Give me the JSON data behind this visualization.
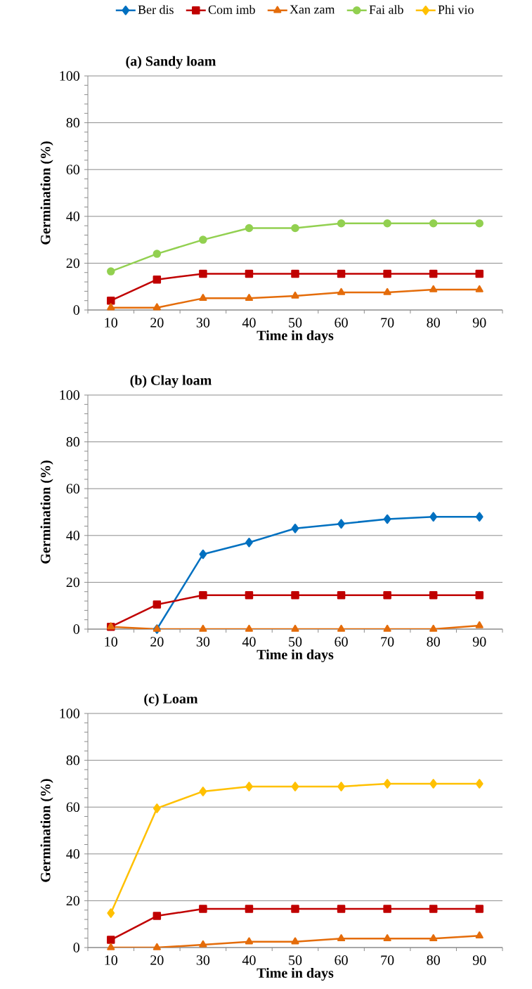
{
  "chart_data": [
    {
      "type": "line",
      "title": "(a)  Sandy loam",
      "xlabel": "Time in days",
      "ylabel": "Germination (%)",
      "categories": [
        "10",
        "20",
        "30",
        "40",
        "50",
        "60",
        "70",
        "80",
        "90"
      ],
      "ylim": [
        0,
        100
      ],
      "yticks": [
        0,
        20,
        40,
        60,
        80,
        100
      ],
      "grid": "y",
      "legend": "top",
      "series": [
        {
          "name": "Ber dis",
          "color": "#0070c0",
          "marker": "diamond",
          "values": [
            null,
            null,
            null,
            null,
            null,
            null,
            null,
            null,
            null
          ]
        },
        {
          "name": "Com imb",
          "color": "#c00000",
          "marker": "square",
          "values": [
            4,
            13,
            15.5,
            15.5,
            15.5,
            15.5,
            15.5,
            15.5,
            15.5
          ]
        },
        {
          "name": "Xan zam",
          "color": "#e46c0a",
          "marker": "triangle",
          "values": [
            1,
            1,
            5,
            5,
            6,
            7.5,
            7.5,
            8.7,
            8.7
          ]
        },
        {
          "name": "Fai alb",
          "color": "#92d050",
          "marker": "circle",
          "values": [
            16.5,
            24,
            30,
            35,
            35,
            37,
            37,
            37,
            37
          ]
        },
        {
          "name": "Phi vio",
          "color": "#ffc000",
          "marker": "diamond",
          "values": [
            null,
            null,
            null,
            null,
            null,
            null,
            null,
            null,
            null
          ]
        }
      ]
    },
    {
      "type": "line",
      "title": "(b) Clay loam",
      "xlabel": "Time in days",
      "ylabel": "Germination (%)",
      "categories": [
        "10",
        "20",
        "30",
        "40",
        "50",
        "60",
        "70",
        "80",
        "90"
      ],
      "ylim": [
        0,
        100
      ],
      "yticks": [
        0,
        20,
        40,
        60,
        80,
        100
      ],
      "grid": "y",
      "series": [
        {
          "color": "#0070c0",
          "marker": "diamond",
          "values": [
            null,
            0,
            32,
            37,
            43,
            45,
            47,
            48,
            48
          ]
        },
        {
          "color": "#c00000",
          "marker": "square",
          "values": [
            1,
            10.5,
            14.5,
            14.5,
            14.5,
            14.5,
            14.5,
            14.5,
            14.5
          ]
        },
        {
          "color": "#e46c0a",
          "marker": "triangle",
          "values": [
            1,
            0,
            0,
            0,
            0,
            0,
            0,
            0,
            1.5
          ]
        }
      ]
    },
    {
      "type": "line",
      "title": "(c) Loam",
      "xlabel": "Time in days",
      "ylabel": "Germination (%)",
      "categories": [
        "10",
        "20",
        "30",
        "40",
        "50",
        "60",
        "70",
        "80",
        "90"
      ],
      "ylim": [
        0,
        100
      ],
      "yticks": [
        0,
        20,
        40,
        60,
        80,
        100
      ],
      "grid": "y",
      "series": [
        {
          "color": "#c00000",
          "marker": "square",
          "values": [
            3.3,
            13.5,
            16.5,
            16.5,
            16.5,
            16.5,
            16.5,
            16.5,
            16.5
          ]
        },
        {
          "color": "#e46c0a",
          "marker": "triangle",
          "values": [
            0,
            0,
            1.2,
            2.5,
            2.5,
            3.8,
            3.8,
            3.8,
            5
          ]
        },
        {
          "color": "#ffc000",
          "marker": "diamond",
          "values": [
            14.7,
            59.5,
            66.7,
            68.8,
            68.8,
            68.8,
            70,
            70,
            70
          ]
        }
      ]
    }
  ]
}
